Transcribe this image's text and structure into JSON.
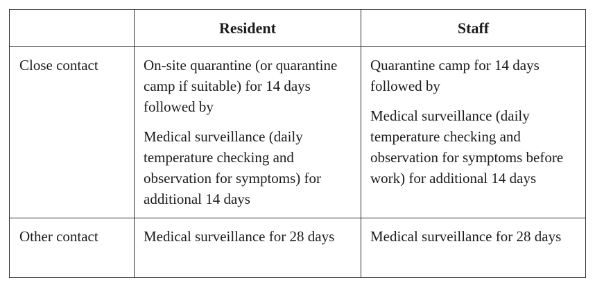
{
  "table": {
    "headers": {
      "corner": "",
      "resident": "Resident",
      "staff": "Staff"
    },
    "rows": [
      {
        "label": "Close contact",
        "resident": [
          "On-site quarantine (or quarantine camp if suitable) for 14 days followed by",
          "Medical surveillance (daily temperature checking and observation for symptoms) for additional 14 days"
        ],
        "staff": [
          "Quarantine camp for 14 days followed by",
          "Medical surveillance (daily temperature checking and observation for symptoms before work) for additional 14 days"
        ]
      },
      {
        "label": "Other contact",
        "resident": [
          "Medical surveillance for 28 days"
        ],
        "staff": [
          "Medical surveillance for 28 days"
        ]
      }
    ]
  },
  "colors": {
    "border": "#2e2e2e",
    "text": "#1c1c1c",
    "background": "#ffffff"
  }
}
